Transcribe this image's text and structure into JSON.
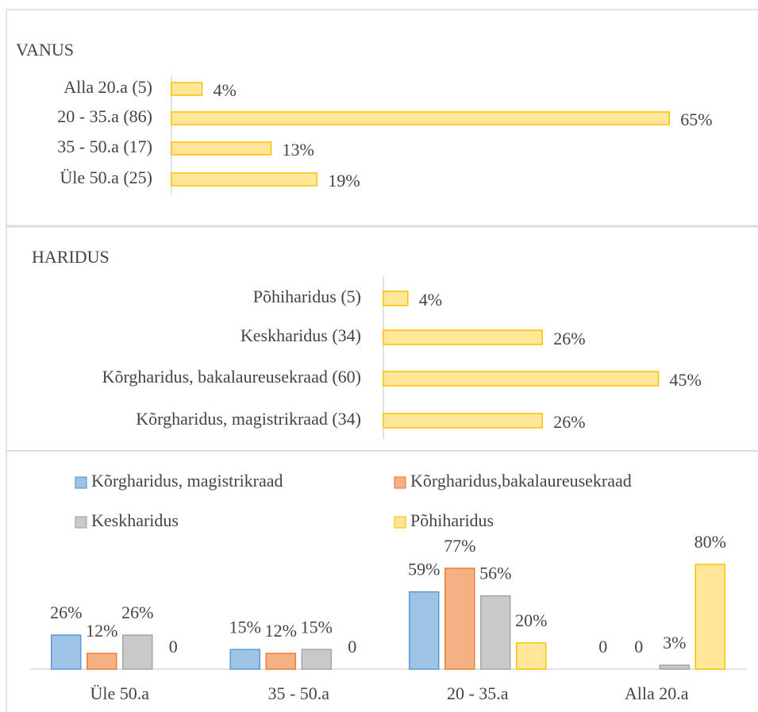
{
  "chart_data": [
    {
      "type": "bar",
      "orientation": "horizontal",
      "title": "VANUS",
      "categories": [
        "Alla 20.a (5)",
        "20 - 35.a (86)",
        "35 - 50.a (17)",
        "Üle 50.a (25)"
      ],
      "values": [
        4,
        65,
        13,
        19
      ],
      "value_labels": [
        "4%",
        "65%",
        "13%",
        "19%"
      ],
      "color": "#ffe699",
      "edgecolor": "#ffc000"
    },
    {
      "type": "bar",
      "orientation": "horizontal",
      "title": "HARIDUS",
      "categories": [
        "Põhiharidus (5)",
        "Keskharidus (34)",
        "Kõrgharidus, bakalaureusekraad (60)",
        "Kõrgharidus, magistrikraad (34)"
      ],
      "values": [
        4,
        26,
        45,
        26
      ],
      "value_labels": [
        "4%",
        "26%",
        "45%",
        "26%"
      ],
      "color": "#ffe699",
      "edgecolor": "#ffc000"
    },
    {
      "type": "bar",
      "orientation": "vertical",
      "categories": [
        "Üle 50.a",
        "35 - 50.a",
        "20 - 35.a",
        "Alla 20.a"
      ],
      "series": [
        {
          "name": "Kõrgharidus,  magistrikraad",
          "color": "#9dc3e6",
          "edgecolor": "#5b9bd5",
          "values": [
            26,
            15,
            59,
            0
          ],
          "value_labels": [
            "26%",
            "15%",
            "59%",
            "0"
          ]
        },
        {
          "name": "Kõrgharidus,bakalaureusekraad",
          "color": "#f4b183",
          "edgecolor": "#ed7d31",
          "values": [
            12,
            12,
            77,
            0
          ],
          "value_labels": [
            "12%",
            "12%",
            "77%",
            "0"
          ]
        },
        {
          "name": "Keskharidus",
          "color": "#c9c9c9",
          "edgecolor": "#a5a5a5",
          "values": [
            26,
            15,
            56,
            3
          ],
          "value_labels": [
            "26%",
            "15%",
            "56%",
            "3%"
          ]
        },
        {
          "name": "Põhiharidus",
          "color": "#ffe699",
          "edgecolor": "#ffc000",
          "values": [
            0,
            0,
            20,
            80
          ],
          "value_labels": [
            "0",
            "0",
            "20%",
            "80%"
          ]
        }
      ]
    }
  ]
}
